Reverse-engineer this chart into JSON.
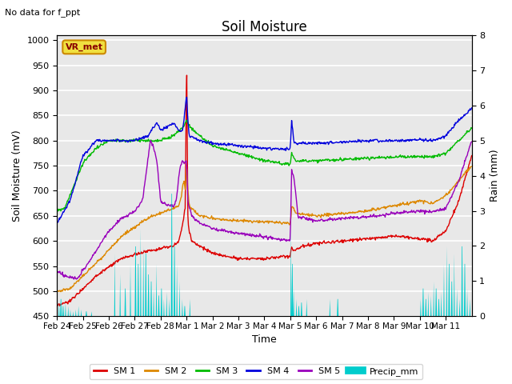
{
  "title": "Soil Moisture",
  "subtitle": "No data for f_ppt",
  "xlabel": "Time",
  "ylabel_left": "Soil Moisture (mV)",
  "ylabel_right": "Rain (mm)",
  "ylim_left": [
    450,
    1010
  ],
  "ylim_right": [
    0.0,
    8.0
  ],
  "yticks_left": [
    450,
    500,
    550,
    600,
    650,
    700,
    750,
    800,
    850,
    900,
    950,
    1000
  ],
  "yticks_right": [
    0.0,
    1.0,
    2.0,
    3.0,
    4.0,
    5.0,
    6.0,
    7.0,
    8.0
  ],
  "xtick_labels": [
    "Feb 24",
    "Feb 25",
    "Feb 26",
    "Feb 27",
    "Feb 28",
    "Mar 1",
    "Mar 2",
    "Mar 3",
    "Mar 4",
    "Mar 5",
    "Mar 6",
    "Mar 7",
    "Mar 8",
    "Mar 9",
    "Mar 10",
    "Mar 11"
  ],
  "legend_entries": [
    "SM 1",
    "SM 2",
    "SM 3",
    "SM 4",
    "SM 5",
    "Precip_mm"
  ],
  "legend_colors": [
    "#dd0000",
    "#dd8800",
    "#00bb00",
    "#0000dd",
    "#9900bb",
    "#00cccc"
  ],
  "annotation_box": "VR_met",
  "background_color": "#e8e8e8",
  "grid_color": "#ffffff",
  "title_fontsize": 12,
  "label_fontsize": 9,
  "tick_fontsize": 8
}
